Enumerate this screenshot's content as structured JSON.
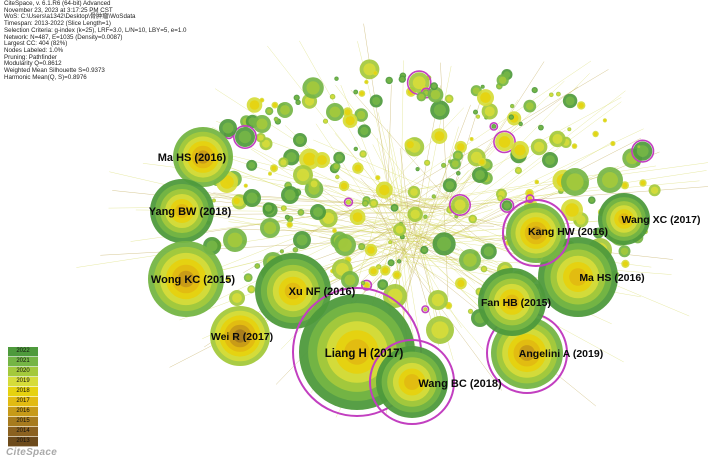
{
  "header_lines": [
    "CiteSpace, v. 6.1.R6 (64-bit) Advanced",
    "November 23, 2023 at 3:17:25 PM CST",
    "WoS: C:\\Users\\a1342\\Desktop\\骨肿瘤\\WoSdata",
    "Timespan: 2013-2022 (Slice Length=1)",
    "Selection Criteria: g-index (k=25), LRF=3.0, L/N=10, LBY=5, e=1.0",
    "Network: N=487, E=1035 (Density=0.0087)",
    "Largest CC: 404 (82%)",
    "Nodes Labeled: 1.0%",
    "Pruning: Pathfinder",
    "Modularity Q=0.8612",
    "Weighted Mean Silhouette S=0.9373",
    "Harmonic Mean(Q, S)=0.8976"
  ],
  "legend": {
    "years": [
      "2022",
      "2021",
      "2020",
      "2019",
      "2018",
      "2017",
      "2016",
      "2015",
      "2014",
      "2013"
    ],
    "colors": [
      "#4e9a3c",
      "#75b545",
      "#a4c93c",
      "#d6dc3a",
      "#e6d20f",
      "#e2bb12",
      "#c79a18",
      "#a77b1e",
      "#8b6120",
      "#6d4b1c"
    ]
  },
  "brand": "CiteSpace",
  "colors": {
    "burst_ring": "#c23fc0",
    "link": "#d4d85a"
  },
  "labeled_nodes": [
    {
      "label": "Ma HS (2016)",
      "ring": false
    },
    {
      "label": "Yang BW (2018)",
      "ring": false
    },
    {
      "label": "Wong KC (2015)",
      "ring": false
    },
    {
      "label": "Xu NF (2016)",
      "ring": false
    },
    {
      "label": "Wei R (2017)",
      "ring": false
    },
    {
      "label": "Liang H (2017)",
      "ring": true
    },
    {
      "label": "Wang BC (2018)",
      "ring": true
    },
    {
      "label": "Angelini A (2019)",
      "ring": true
    },
    {
      "label": "Fan HB (2015)",
      "ring": false
    },
    {
      "label": "Ma HS (2016)",
      "ring": false
    },
    {
      "label": "Kang HW (2016)",
      "ring": true
    },
    {
      "label": "Wang XC (2017)",
      "ring": false
    }
  ]
}
